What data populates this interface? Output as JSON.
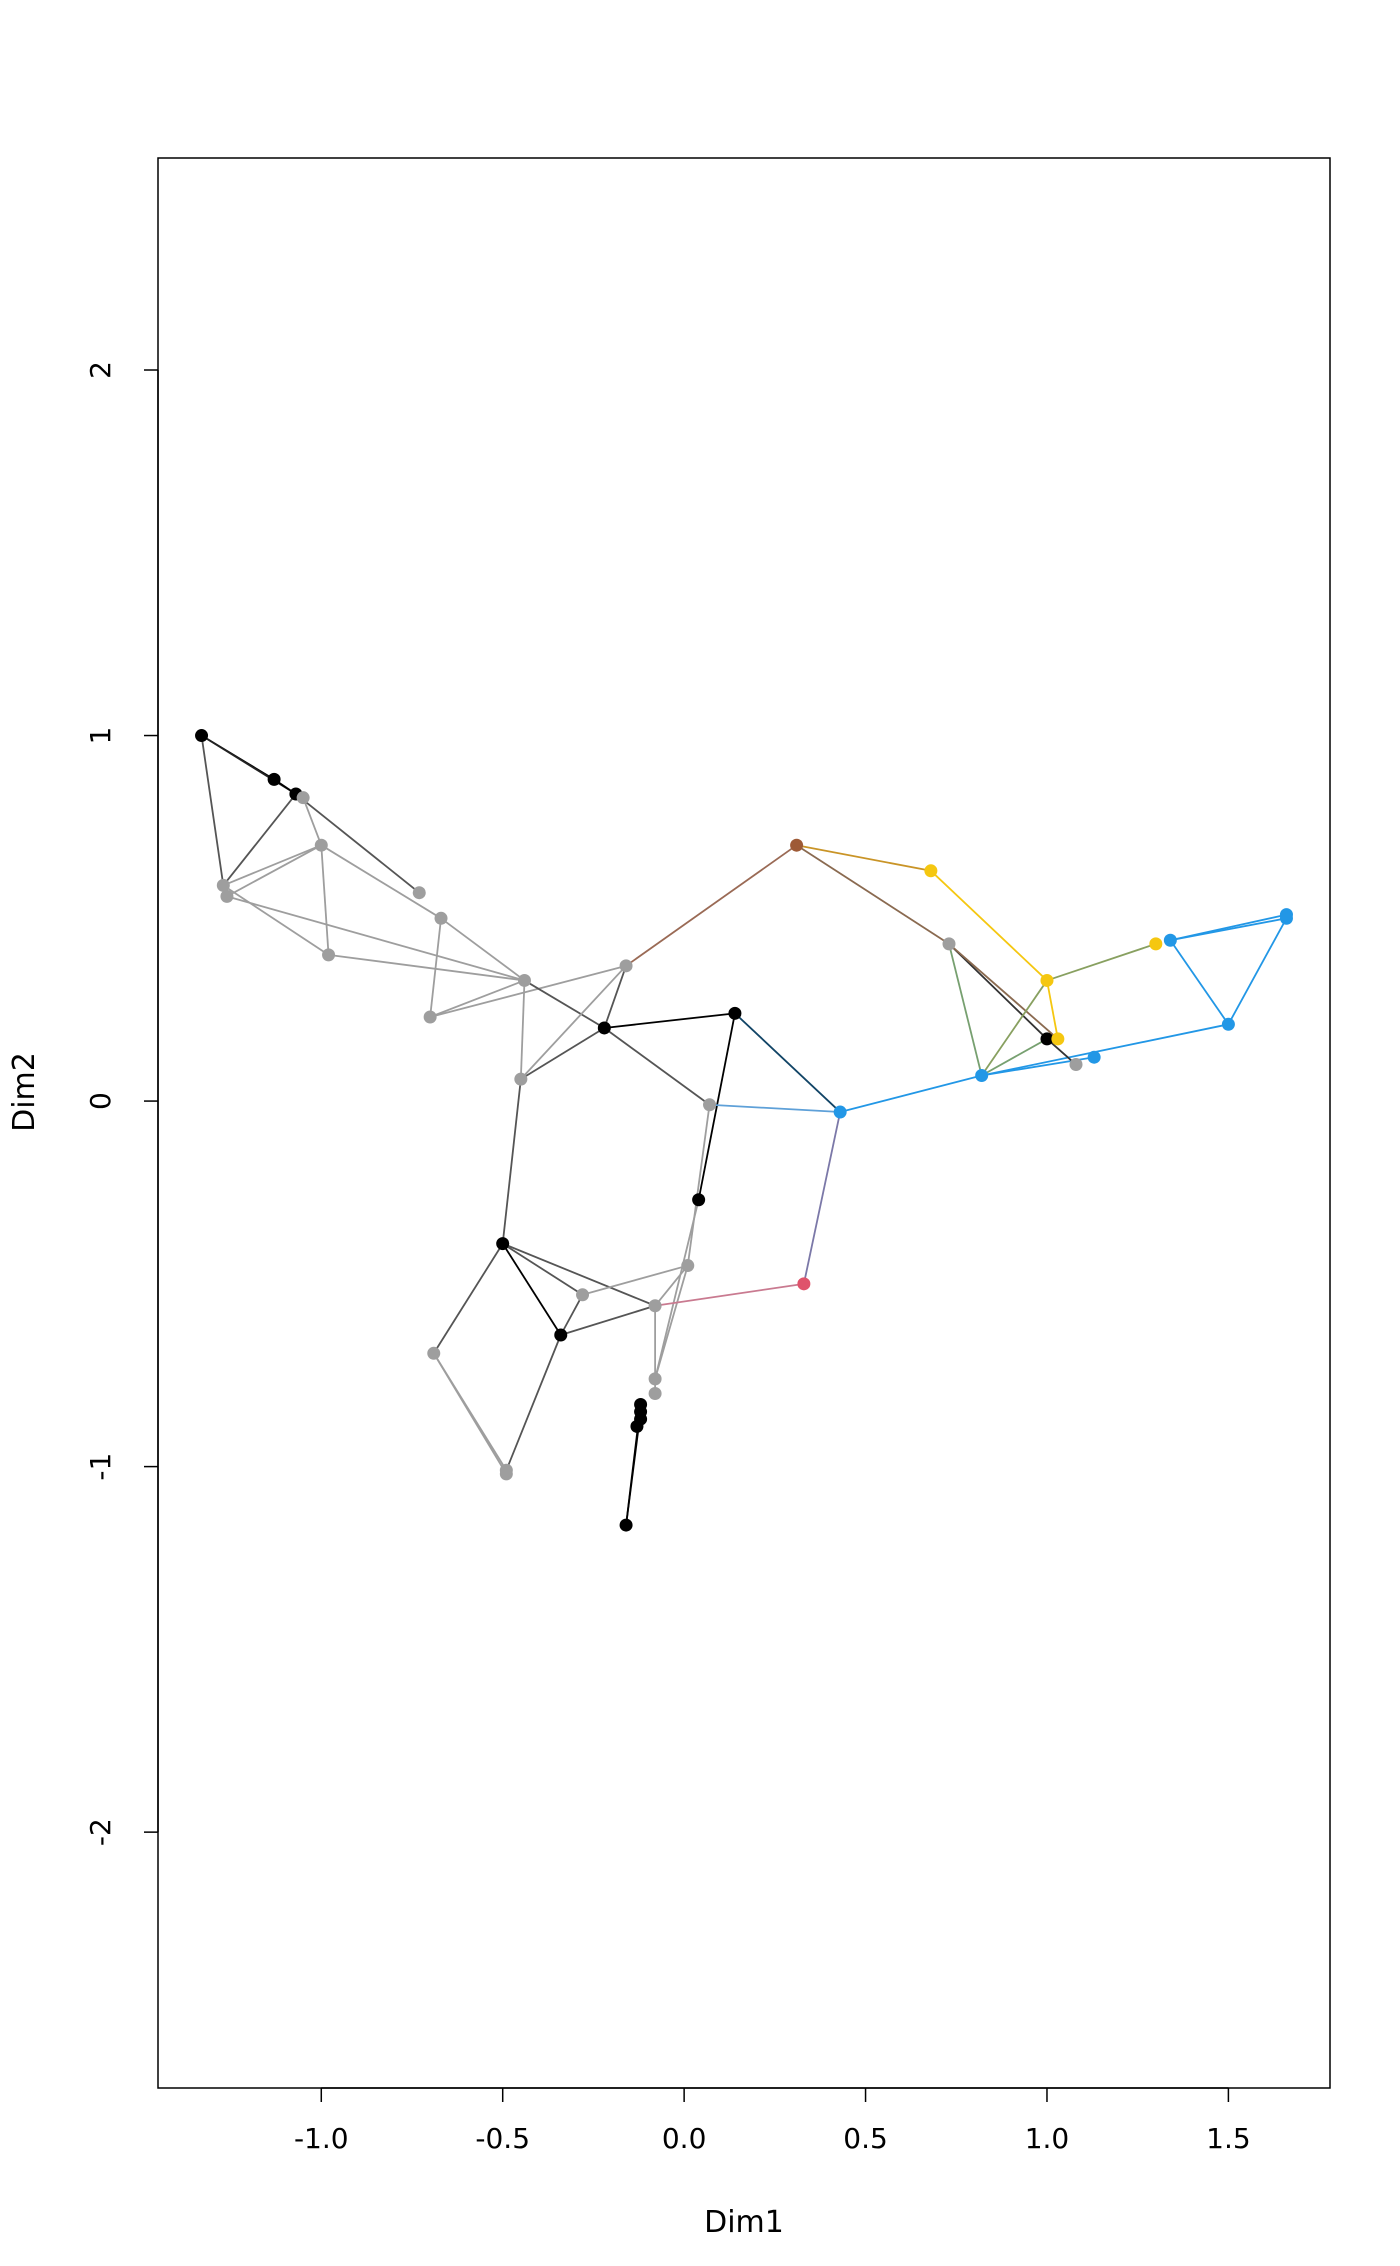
{
  "chart_data": {
    "type": "scatter",
    "xlabel": "Dim1",
    "ylabel": "Dim2",
    "xlim": [
      -1.45,
      1.78
    ],
    "ylim": [
      -2.7,
      2.58
    ],
    "x_ticks": [
      -1.0,
      -0.5,
      0.0,
      0.5,
      1.0,
      1.5
    ],
    "x_tick_labels": [
      "-1.0",
      "-0.5",
      "0.0",
      "0.5",
      "1.0",
      "1.5"
    ],
    "y_ticks": [
      -2,
      -1,
      0,
      1,
      2
    ],
    "y_tick_labels": [
      "-2",
      "-1",
      "0",
      "1",
      "2"
    ],
    "grid": false,
    "legend": "none",
    "colors": {
      "black": "#000000",
      "gray": "#9e9e9e",
      "red": "#df536b",
      "brown": "#9e5a36",
      "yellow": "#f5c710",
      "blue": "#2297e6"
    },
    "nodes": [
      {
        "x": -1.33,
        "y": 1.0,
        "color": "black"
      },
      {
        "x": -1.13,
        "y": 0.88,
        "color": "black"
      },
      {
        "x": -1.07,
        "y": 0.84,
        "color": "black"
      },
      {
        "x": -1.05,
        "y": 0.83,
        "color": "gray"
      },
      {
        "x": -1.27,
        "y": 0.59,
        "color": "gray"
      },
      {
        "x": -1.26,
        "y": 0.56,
        "color": "gray"
      },
      {
        "x": -1.0,
        "y": 0.7,
        "color": "gray"
      },
      {
        "x": -0.98,
        "y": 0.4,
        "color": "gray"
      },
      {
        "x": -0.73,
        "y": 0.57,
        "color": "gray"
      },
      {
        "x": -0.67,
        "y": 0.5,
        "color": "gray"
      },
      {
        "x": -0.7,
        "y": 0.23,
        "color": "gray"
      },
      {
        "x": -0.44,
        "y": 0.33,
        "color": "gray"
      },
      {
        "x": -0.45,
        "y": 0.06,
        "color": "gray"
      },
      {
        "x": -0.16,
        "y": 0.37,
        "color": "gray"
      },
      {
        "x": -0.22,
        "y": 0.2,
        "color": "black"
      },
      {
        "x": 0.14,
        "y": 0.24,
        "color": "black"
      },
      {
        "x": 0.07,
        "y": -0.01,
        "color": "gray"
      },
      {
        "x": 0.04,
        "y": -0.27,
        "color": "black"
      },
      {
        "x": 0.43,
        "y": -0.03,
        "color": "blue"
      },
      {
        "x": 0.31,
        "y": 0.7,
        "color": "brown"
      },
      {
        "x": 0.68,
        "y": 0.63,
        "color": "yellow"
      },
      {
        "x": 0.73,
        "y": 0.43,
        "color": "gray"
      },
      {
        "x": 0.82,
        "y": 0.07,
        "color": "blue"
      },
      {
        "x": 1.0,
        "y": 0.33,
        "color": "yellow"
      },
      {
        "x": 1.0,
        "y": 0.17,
        "color": "black"
      },
      {
        "x": 1.03,
        "y": 0.17,
        "color": "yellow"
      },
      {
        "x": 1.08,
        "y": 0.1,
        "color": "gray"
      },
      {
        "x": 1.13,
        "y": 0.12,
        "color": "blue"
      },
      {
        "x": 1.3,
        "y": 0.43,
        "color": "yellow"
      },
      {
        "x": 1.34,
        "y": 0.44,
        "color": "blue"
      },
      {
        "x": 1.5,
        "y": 0.21,
        "color": "blue"
      },
      {
        "x": 1.66,
        "y": 0.51,
        "color": "blue"
      },
      {
        "x": 1.66,
        "y": 0.5,
        "color": "blue"
      },
      {
        "x": -0.5,
        "y": -0.39,
        "color": "black"
      },
      {
        "x": -0.28,
        "y": -0.53,
        "color": "gray"
      },
      {
        "x": -0.34,
        "y": -0.64,
        "color": "black"
      },
      {
        "x": 0.01,
        "y": -0.45,
        "color": "gray"
      },
      {
        "x": -0.08,
        "y": -0.56,
        "color": "gray"
      },
      {
        "x": 0.33,
        "y": -0.5,
        "color": "red"
      },
      {
        "x": -0.69,
        "y": -0.69,
        "color": "gray"
      },
      {
        "x": -0.49,
        "y": -1.01,
        "color": "gray"
      },
      {
        "x": -0.49,
        "y": -1.02,
        "color": "gray"
      },
      {
        "x": -0.08,
        "y": -0.76,
        "color": "gray"
      },
      {
        "x": -0.08,
        "y": -0.8,
        "color": "gray"
      },
      {
        "x": -0.12,
        "y": -0.83,
        "color": "black"
      },
      {
        "x": -0.12,
        "y": -0.85,
        "color": "black"
      },
      {
        "x": -0.12,
        "y": -0.87,
        "color": "black"
      },
      {
        "x": -0.13,
        "y": -0.89,
        "color": "black"
      },
      {
        "x": -0.16,
        "y": -1.16,
        "color": "black"
      }
    ],
    "edges": [
      {
        "a": 0,
        "b": 1,
        "color": "#000000"
      },
      {
        "a": 0,
        "b": 2,
        "color": "#222222"
      },
      {
        "a": 0,
        "b": 4,
        "color": "#555555"
      },
      {
        "a": 1,
        "b": 2,
        "color": "#000000"
      },
      {
        "a": 2,
        "b": 4,
        "color": "#555555"
      },
      {
        "a": 2,
        "b": 8,
        "color": "#555555"
      },
      {
        "a": 3,
        "b": 6,
        "color": "#9e9e9e"
      },
      {
        "a": 4,
        "b": 6,
        "color": "#9e9e9e"
      },
      {
        "a": 5,
        "b": 6,
        "color": "#9e9e9e"
      },
      {
        "a": 4,
        "b": 7,
        "color": "#9e9e9e"
      },
      {
        "a": 5,
        "b": 11,
        "color": "#9e9e9e"
      },
      {
        "a": 6,
        "b": 7,
        "color": "#9e9e9e"
      },
      {
        "a": 6,
        "b": 9,
        "color": "#9e9e9e"
      },
      {
        "a": 7,
        "b": 11,
        "color": "#9e9e9e"
      },
      {
        "a": 9,
        "b": 10,
        "color": "#9e9e9e"
      },
      {
        "a": 9,
        "b": 11,
        "color": "#9e9e9e"
      },
      {
        "a": 10,
        "b": 11,
        "color": "#9e9e9e"
      },
      {
        "a": 10,
        "b": 13,
        "color": "#9e9e9e"
      },
      {
        "a": 11,
        "b": 12,
        "color": "#9e9e9e"
      },
      {
        "a": 11,
        "b": 14,
        "color": "#555555"
      },
      {
        "a": 12,
        "b": 13,
        "color": "#9e9e9e"
      },
      {
        "a": 12,
        "b": 14,
        "color": "#555555"
      },
      {
        "a": 13,
        "b": 14,
        "color": "#555555"
      },
      {
        "a": 13,
        "b": 19,
        "color": "#9a6a55"
      },
      {
        "a": 14,
        "b": 15,
        "color": "#000000"
      },
      {
        "a": 14,
        "b": 16,
        "color": "#555555"
      },
      {
        "a": 15,
        "b": 17,
        "color": "#000000"
      },
      {
        "a": 15,
        "b": 18,
        "color": "#114466"
      },
      {
        "a": 16,
        "b": 18,
        "color": "#5ea0d8"
      },
      {
        "a": 16,
        "b": 36,
        "color": "#9e9e9e"
      },
      {
        "a": 17,
        "b": 42,
        "color": "#9e9e9e"
      },
      {
        "a": 18,
        "b": 22,
        "color": "#2297e6"
      },
      {
        "a": 18,
        "b": 38,
        "color": "#7b78a8"
      },
      {
        "a": 19,
        "b": 20,
        "color": "#c99427"
      },
      {
        "a": 19,
        "b": 21,
        "color": "#8a6a50"
      },
      {
        "a": 20,
        "b": 23,
        "color": "#f5c710"
      },
      {
        "a": 21,
        "b": 22,
        "color": "#77a070"
      },
      {
        "a": 21,
        "b": 24,
        "color": "#333333"
      },
      {
        "a": 21,
        "b": 25,
        "color": "#8a6a50"
      },
      {
        "a": 22,
        "b": 23,
        "color": "#88a060"
      },
      {
        "a": 22,
        "b": 24,
        "color": "#77a070"
      },
      {
        "a": 22,
        "b": 27,
        "color": "#2297e6"
      },
      {
        "a": 22,
        "b": 30,
        "color": "#2297e6"
      },
      {
        "a": 23,
        "b": 25,
        "color": "#f5c710"
      },
      {
        "a": 23,
        "b": 28,
        "color": "#88a060"
      },
      {
        "a": 24,
        "b": 26,
        "color": "#333333"
      },
      {
        "a": 29,
        "b": 30,
        "color": "#2297e6"
      },
      {
        "a": 29,
        "b": 31,
        "color": "#2297e6"
      },
      {
        "a": 29,
        "b": 32,
        "color": "#2297e6"
      },
      {
        "a": 30,
        "b": 32,
        "color": "#2297e6"
      },
      {
        "a": 12,
        "b": 33,
        "color": "#555555"
      },
      {
        "a": 33,
        "b": 34,
        "color": "#555555"
      },
      {
        "a": 33,
        "b": 35,
        "color": "#000000"
      },
      {
        "a": 33,
        "b": 37,
        "color": "#555555"
      },
      {
        "a": 33,
        "b": 39,
        "color": "#555555"
      },
      {
        "a": 34,
        "b": 36,
        "color": "#9e9e9e"
      },
      {
        "a": 35,
        "b": 34,
        "color": "#555555"
      },
      {
        "a": 35,
        "b": 37,
        "color": "#555555"
      },
      {
        "a": 35,
        "b": 40,
        "color": "#555555"
      },
      {
        "a": 36,
        "b": 37,
        "color": "#9e9e9e"
      },
      {
        "a": 36,
        "b": 42,
        "color": "#9e9e9e"
      },
      {
        "a": 37,
        "b": 38,
        "color": "#c97a90"
      },
      {
        "a": 37,
        "b": 43,
        "color": "#9e9e9e"
      },
      {
        "a": 39,
        "b": 40,
        "color": "#9e9e9e"
      },
      {
        "a": 39,
        "b": 41,
        "color": "#9e9e9e"
      },
      {
        "a": 44,
        "b": 48,
        "color": "#000000"
      },
      {
        "a": 45,
        "b": 48,
        "color": "#000000"
      },
      {
        "a": 46,
        "b": 47,
        "color": "#000000"
      }
    ]
  }
}
